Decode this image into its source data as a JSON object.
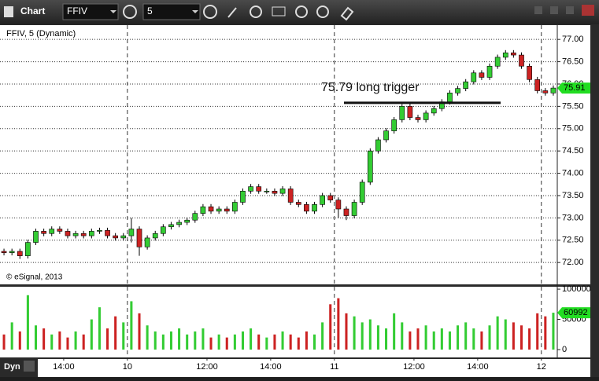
{
  "ui": {
    "window_title": "Chart",
    "symbol": "FFIV",
    "interval": "5",
    "legend": "FFIV, 5 (Dynamic)",
    "copyright": "© eSignal, 2013",
    "mode": "Dyn"
  },
  "chart_data": {
    "type": "candlestick",
    "categories": [
      null,
      null,
      null,
      null,
      null,
      null,
      null,
      null,
      "14:00",
      null,
      null,
      null,
      null,
      null,
      null,
      null,
      "10",
      null,
      null,
      null,
      null,
      null,
      null,
      null,
      null,
      null,
      "12:00",
      null,
      null,
      null,
      null,
      null,
      null,
      null,
      "14:00",
      null,
      null,
      null,
      null,
      null,
      null,
      null,
      "11",
      null,
      null,
      null,
      null,
      null,
      null,
      null,
      null,
      null,
      "12:00",
      null,
      null,
      null,
      null,
      null,
      null,
      null,
      "14:00",
      null,
      null,
      null,
      null,
      null,
      null,
      null,
      "12",
      null
    ],
    "open": [
      72.25,
      72.22,
      72.25,
      72.15,
      72.45,
      72.7,
      72.65,
      72.75,
      72.7,
      72.6,
      72.65,
      72.6,
      72.7,
      72.72,
      72.6,
      72.55,
      72.6,
      72.75,
      72.35,
      72.55,
      72.65,
      72.8,
      72.85,
      72.9,
      72.95,
      73.1,
      73.25,
      73.15,
      73.2,
      73.15,
      73.35,
      73.6,
      73.7,
      73.6,
      73.6,
      73.55,
      73.65,
      73.35,
      73.3,
      73.15,
      73.3,
      73.5,
      73.4,
      73.2,
      73.05,
      73.35,
      73.8,
      74.5,
      74.75,
      74.95,
      75.2,
      75.5,
      75.25,
      75.2,
      75.35,
      75.45,
      75.6,
      75.8,
      75.9,
      76.05,
      76.25,
      76.15,
      76.4,
      76.6,
      76.7,
      76.65,
      76.4,
      76.1,
      75.85,
      75.8
    ],
    "high": [
      72.31,
      72.31,
      72.31,
      72.51,
      72.76,
      72.76,
      72.81,
      72.81,
      72.76,
      72.71,
      72.71,
      72.76,
      72.78,
      72.78,
      72.66,
      72.66,
      73.0,
      72.81,
      72.61,
      72.71,
      72.86,
      72.91,
      72.96,
      73.01,
      73.16,
      73.31,
      73.31,
      73.26,
      73.26,
      73.41,
      73.66,
      73.76,
      73.76,
      73.66,
      73.66,
      73.71,
      73.71,
      73.41,
      73.36,
      73.36,
      73.56,
      73.56,
      73.46,
      73.26,
      73.41,
      73.86,
      74.56,
      74.81,
      75.01,
      75.26,
      75.55,
      75.56,
      75.31,
      75.41,
      75.51,
      75.66,
      75.86,
      75.96,
      76.11,
      76.31,
      76.31,
      76.46,
      76.66,
      76.76,
      76.76,
      76.71,
      76.46,
      76.16,
      75.91,
      75.97
    ],
    "low": [
      72.16,
      72.16,
      72.08,
      72.09,
      72.39,
      72.59,
      72.59,
      72.64,
      72.54,
      72.54,
      72.54,
      72.54,
      72.64,
      72.54,
      72.49,
      72.49,
      72.45,
      72.15,
      72.29,
      72.49,
      72.59,
      72.74,
      72.79,
      72.84,
      72.89,
      73.04,
      73.09,
      73.09,
      73.09,
      73.09,
      73.29,
      73.54,
      73.54,
      73.54,
      73.49,
      73.49,
      73.29,
      73.24,
      73.09,
      73.09,
      73.24,
      73.34,
      73.0,
      72.95,
      72.99,
      73.29,
      73.74,
      74.44,
      74.69,
      74.89,
      75.14,
      75.19,
      75.14,
      75.14,
      75.29,
      75.39,
      75.54,
      75.74,
      75.84,
      75.99,
      76.09,
      76.09,
      76.34,
      76.54,
      76.59,
      76.34,
      76.04,
      75.79,
      75.74,
      75.74
    ],
    "close": [
      72.22,
      72.25,
      72.15,
      72.45,
      72.7,
      72.65,
      72.75,
      72.7,
      72.6,
      72.65,
      72.6,
      72.7,
      72.72,
      72.6,
      72.55,
      72.6,
      72.75,
      72.35,
      72.55,
      72.65,
      72.8,
      72.85,
      72.9,
      72.95,
      73.1,
      73.25,
      73.15,
      73.2,
      73.15,
      73.35,
      73.6,
      73.7,
      73.6,
      73.6,
      73.55,
      73.65,
      73.35,
      73.3,
      73.15,
      73.3,
      73.5,
      73.4,
      73.2,
      73.05,
      73.35,
      73.8,
      74.5,
      74.75,
      74.95,
      75.2,
      75.5,
      75.25,
      75.2,
      75.35,
      75.45,
      75.6,
      75.8,
      75.9,
      76.05,
      76.25,
      76.15,
      76.4,
      76.6,
      76.7,
      76.65,
      76.4,
      76.1,
      75.85,
      75.8,
      75.91
    ],
    "volume": [
      25000,
      45000,
      30000,
      90000,
      40000,
      35000,
      25000,
      30000,
      20000,
      30000,
      25000,
      50000,
      70000,
      35000,
      55000,
      45000,
      80000,
      60000,
      40000,
      30000,
      25000,
      30000,
      35000,
      25000,
      30000,
      35000,
      20000,
      25000,
      20000,
      25000,
      30000,
      35000,
      25000,
      20000,
      25000,
      30000,
      25000,
      20000,
      30000,
      25000,
      45000,
      75000,
      85000,
      60000,
      55000,
      45000,
      50000,
      40000,
      35000,
      60000,
      45000,
      30000,
      35000,
      40000,
      30000,
      35000,
      30000,
      40000,
      45000,
      35000,
      30000,
      40000,
      55000,
      50000,
      45000,
      40000,
      35000,
      60000,
      55000,
      60992
    ],
    "up_color": "#33cc33",
    "down_color": "#cc2222",
    "tag_color": "#22dd22",
    "ylim": [
      71.51,
      77.32
    ],
    "yticks": [
      {
        "value": 72,
        "label": "72.00"
      },
      {
        "value": 72.5,
        "label": "72.50"
      },
      {
        "value": 73,
        "label": "73.00"
      },
      {
        "value": 73.5,
        "label": "73.50"
      },
      {
        "value": 74,
        "label": "74.00"
      },
      {
        "value": 74.5,
        "label": "74.50"
      },
      {
        "value": 75,
        "label": "75.00"
      },
      {
        "value": 75.5,
        "label": "75.50"
      },
      {
        "value": 76,
        "label": "76.00"
      },
      {
        "value": 76.5,
        "label": "76.50"
      },
      {
        "value": 77,
        "label": "77.00"
      }
    ],
    "volume_ylim": [
      -13000,
      104000
    ],
    "volume_yticks": [
      0,
      50000,
      100000
    ],
    "grid": true,
    "day_separators": true,
    "annotation": {
      "text": "75.79 long trigger",
      "level": 75.58
    }
  }
}
